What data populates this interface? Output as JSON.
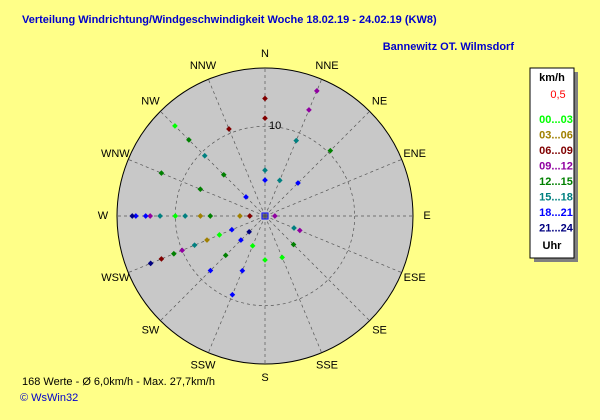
{
  "chart_data": {
    "type": "polar-scatter",
    "title": "Verteilung Windrichtung/Windgeschwindigkeit  Woche 18.02.19 - 24.02.19 (KW8)",
    "subtitle": "Bannewitz OT. Wilmsdorf",
    "categories": [
      "N",
      "NNE",
      "NE",
      "ENE",
      "E",
      "ESE",
      "SE",
      "SSE",
      "S",
      "SSW",
      "SW",
      "WSW",
      "W",
      "WNW",
      "NW",
      "NNW"
    ],
    "rlim": [
      0,
      16.5
    ],
    "rticks": [
      10
    ],
    "legend_header": "km/h",
    "legend_calm": "0,5",
    "legend_footer": "Uhr",
    "stats": "168 Werte   -   Ø 6,0km/h   -   Max. 27,7km/h",
    "credit": "© WsWin32",
    "series": [
      {
        "name": "00...03",
        "color": "#00ff00",
        "x": [
          315,
          270,
          247.5,
          180,
          157.5,
          202.5
        ],
        "values": [
          14.2,
          10,
          5.5,
          4.9,
          5.0,
          3.6
        ]
      },
      {
        "name": "03...06",
        "color": "#a08000",
        "x": [
          270,
          270,
          247.5
        ],
        "values": [
          7.2,
          2.8,
          7
        ]
      },
      {
        "name": "06...09",
        "color": "#800000",
        "x": [
          0,
          0,
          337.5,
          270,
          247.5
        ],
        "values": [
          13.1,
          10.9,
          10.5,
          1.7,
          12.5
        ]
      },
      {
        "name": "09...12",
        "color": "#9000a0",
        "x": [
          22.5,
          22.5,
          270,
          247.5,
          112.5,
          90
        ],
        "values": [
          15.1,
          12.8,
          12.8,
          10,
          4.2,
          1.1
        ]
      },
      {
        "name": "12...15",
        "color": "#008000",
        "x": [
          45,
          315,
          292.5,
          292.5,
          315,
          247.5,
          225,
          135,
          270
        ],
        "values": [
          10.3,
          12,
          12.5,
          7.8,
          6.5,
          11,
          6.2,
          4.5,
          6.1
        ]
      },
      {
        "name": "15...18",
        "color": "#008080",
        "x": [
          0,
          22.5,
          22.5,
          270,
          270,
          315,
          247.5,
          112.5
        ],
        "values": [
          5.1,
          9.1,
          4.3,
          11.7,
          8.9,
          9.5,
          8.5,
          3.5
        ]
      },
      {
        "name": "18...21",
        "color": "#0000ff",
        "x": [
          0,
          45,
          270,
          270,
          315,
          247.5,
          225,
          225,
          202.5,
          202.5
        ],
        "values": [
          4,
          5.2,
          14.4,
          13.3,
          3,
          4,
          8.6,
          3.8,
          6.6,
          9.5
        ]
      },
      {
        "name": "21...24",
        "color": "#000080",
        "x": [
          247.5,
          270,
          225
        ],
        "values": [
          13.8,
          14.8,
          2.5
        ]
      }
    ]
  }
}
